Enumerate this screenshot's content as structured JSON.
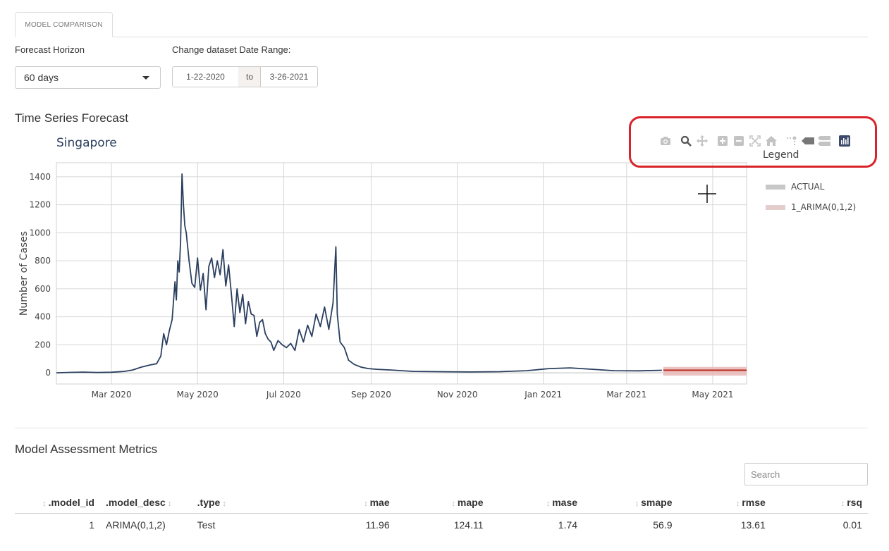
{
  "tabs": [
    {
      "label": "MODEL COMPARISON"
    }
  ],
  "controls": {
    "horizon_label": "Forecast Horizon",
    "horizon_value": "60 days",
    "date_range_label": "Change dataset Date Range:",
    "date_start": "1-22-2020",
    "date_sep": "to",
    "date_end": "3-26-2021"
  },
  "section_forecast": "Time Series Forecast",
  "section_metrics": "Model Assessment Metrics",
  "plot": {
    "modebar_icons": [
      "camera-icon",
      "zoom-icon",
      "pan-icon",
      "zoom-in-icon",
      "zoom-out-icon",
      "autoscale-icon",
      "reset-axes-icon",
      "spike-lines-icon",
      "hover-closest-icon",
      "hover-compare-icon",
      "plotly-logo-icon"
    ]
  },
  "chart_data": {
    "type": "line",
    "title": "Singapore",
    "ylabel": "Number of Cases",
    "xlabel": "",
    "x_ticks": [
      "Mar 2020",
      "May 2020",
      "Jul 2020",
      "Sep 2020",
      "Nov 2020",
      "Jan 2021",
      "Mar 2021",
      "May 2021"
    ],
    "y_ticks": [
      0,
      200,
      400,
      600,
      800,
      1000,
      1200,
      1400
    ],
    "ylim": [
      -80,
      1500
    ],
    "xlim": [
      "2020-01-22",
      "2021-05-25"
    ],
    "grid": true,
    "legend": {
      "title": "Legend",
      "placement": "right"
    },
    "series": [
      {
        "name": "ACTUAL",
        "color": "#2a3f5f",
        "points": [
          [
            "2020-01-22",
            0
          ],
          [
            "2020-02-01",
            3
          ],
          [
            "2020-02-10",
            5
          ],
          [
            "2020-02-20",
            2
          ],
          [
            "2020-03-01",
            4
          ],
          [
            "2020-03-10",
            10
          ],
          [
            "2020-03-16",
            20
          ],
          [
            "2020-03-22",
            40
          ],
          [
            "2020-03-28",
            55
          ],
          [
            "2020-04-02",
            65
          ],
          [
            "2020-04-05",
            120
          ],
          [
            "2020-04-07",
            280
          ],
          [
            "2020-04-09",
            200
          ],
          [
            "2020-04-11",
            300
          ],
          [
            "2020-04-13",
            380
          ],
          [
            "2020-04-15",
            650
          ],
          [
            "2020-04-16",
            520
          ],
          [
            "2020-04-17",
            800
          ],
          [
            "2020-04-18",
            720
          ],
          [
            "2020-04-19",
            940
          ],
          [
            "2020-04-20",
            1420
          ],
          [
            "2020-04-21",
            1200
          ],
          [
            "2020-04-22",
            1050
          ],
          [
            "2020-04-23",
            1000
          ],
          [
            "2020-04-25",
            800
          ],
          [
            "2020-04-27",
            640
          ],
          [
            "2020-04-29",
            610
          ],
          [
            "2020-05-01",
            820
          ],
          [
            "2020-05-03",
            590
          ],
          [
            "2020-05-05",
            710
          ],
          [
            "2020-05-07",
            450
          ],
          [
            "2020-05-09",
            760
          ],
          [
            "2020-05-11",
            820
          ],
          [
            "2020-05-13",
            680
          ],
          [
            "2020-05-15",
            800
          ],
          [
            "2020-05-17",
            700
          ],
          [
            "2020-05-19",
            880
          ],
          [
            "2020-05-21",
            620
          ],
          [
            "2020-05-23",
            770
          ],
          [
            "2020-05-25",
            560
          ],
          [
            "2020-05-27",
            330
          ],
          [
            "2020-05-29",
            600
          ],
          [
            "2020-05-31",
            430
          ],
          [
            "2020-06-02",
            560
          ],
          [
            "2020-06-04",
            350
          ],
          [
            "2020-06-06",
            510
          ],
          [
            "2020-06-08",
            420
          ],
          [
            "2020-06-10",
            410
          ],
          [
            "2020-06-12",
            260
          ],
          [
            "2020-06-14",
            360
          ],
          [
            "2020-06-16",
            380
          ],
          [
            "2020-06-18",
            280
          ],
          [
            "2020-06-20",
            240
          ],
          [
            "2020-06-22",
            220
          ],
          [
            "2020-06-24",
            160
          ],
          [
            "2020-06-27",
            230
          ],
          [
            "2020-06-30",
            200
          ],
          [
            "2020-07-03",
            180
          ],
          [
            "2020-07-06",
            210
          ],
          [
            "2020-07-09",
            160
          ],
          [
            "2020-07-12",
            310
          ],
          [
            "2020-07-15",
            220
          ],
          [
            "2020-07-18",
            340
          ],
          [
            "2020-07-21",
            260
          ],
          [
            "2020-07-24",
            420
          ],
          [
            "2020-07-27",
            330
          ],
          [
            "2020-07-30",
            470
          ],
          [
            "2020-08-02",
            310
          ],
          [
            "2020-08-05",
            500
          ],
          [
            "2020-08-07",
            900
          ],
          [
            "2020-08-08",
            420
          ],
          [
            "2020-08-10",
            220
          ],
          [
            "2020-08-13",
            180
          ],
          [
            "2020-08-16",
            90
          ],
          [
            "2020-08-20",
            60
          ],
          [
            "2020-08-25",
            40
          ],
          [
            "2020-08-30",
            30
          ],
          [
            "2020-09-05",
            25
          ],
          [
            "2020-09-15",
            20
          ],
          [
            "2020-10-01",
            10
          ],
          [
            "2020-10-20",
            8
          ],
          [
            "2020-11-10",
            6
          ],
          [
            "2020-12-01",
            8
          ],
          [
            "2020-12-20",
            15
          ],
          [
            "2021-01-05",
            30
          ],
          [
            "2021-01-20",
            35
          ],
          [
            "2021-02-05",
            25
          ],
          [
            "2021-02-20",
            15
          ],
          [
            "2021-03-10",
            14
          ],
          [
            "2021-03-26",
            18
          ]
        ]
      },
      {
        "name": "1_ARIMA(0,1,2)",
        "color": "#c0392b",
        "band_color": "#e7b9b9",
        "points": [
          [
            "2021-03-27",
            18
          ],
          [
            "2021-05-25",
            18
          ]
        ],
        "band": [
          [
            "2021-03-27",
            -20,
            42
          ],
          [
            "2021-05-25",
            -20,
            42
          ]
        ]
      }
    ]
  },
  "table": {
    "search_placeholder": "Search",
    "columns": [
      ".model_id",
      ".model_desc",
      ".type",
      "mae",
      "mape",
      "mase",
      "smape",
      "rmse",
      "rsq"
    ],
    "rows": [
      [
        "1",
        "ARIMA(0,1,2)",
        "Test",
        "11.96",
        "124.11",
        "1.74",
        "56.9",
        "13.61",
        "0.01"
      ]
    ]
  }
}
